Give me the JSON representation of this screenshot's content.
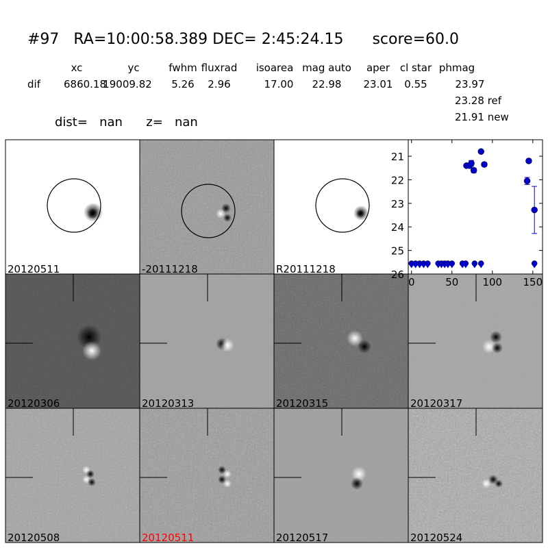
{
  "header": {
    "title": "#97   RA=10:00:58.389 DEC= 2:45:24.15      score=60.0",
    "columns": [
      "xc",
      "yc",
      "fwhm",
      "fluxrad",
      "isoarea",
      "mag auto",
      "aper",
      "cl star",
      "phmag"
    ],
    "row_label": "dif",
    "row_values": [
      "6860.18",
      "19009.82",
      "5.26",
      "2.96",
      "17.00",
      "22.98",
      "23.01",
      "0.55",
      "23.97"
    ],
    "ref": "23.28 ref",
    "new": "21.91 new",
    "dist": "dist=   nan      z=   nan"
  },
  "panels": [
    "20120511",
    "-20111218",
    "R20111218",
    "20120306",
    "20120313",
    "20120315",
    "20120317",
    "20120508",
    "20120511",
    "20120517",
    "20120524"
  ],
  "highlight_panel_color": "#ff0000",
  "chart_data": {
    "type": "scatter",
    "color": "#0000cc",
    "x": [
      68,
      72,
      74,
      77,
      86,
      90,
      143,
      145,
      152
    ],
    "values": [
      21.4,
      21.4,
      21.3,
      21.6,
      20.8,
      21.35,
      22.05,
      21.2,
      23.28
    ],
    "errors": [
      0.05,
      0.05,
      0.12,
      0.1,
      0.05,
      0.08,
      0.15,
      0.08,
      1.0
    ],
    "limit_x": [
      0,
      5,
      10,
      15,
      20,
      33,
      37,
      41,
      45,
      50,
      63,
      67,
      78,
      86,
      152
    ],
    "limit_values": [
      25.55,
      25.55,
      25.55,
      25.55,
      25.55,
      25.55,
      25.55,
      25.55,
      25.55,
      25.55,
      25.55,
      25.55,
      25.55,
      25.55,
      25.55
    ],
    "xlim": [
      -4,
      162
    ],
    "ylim": [
      26,
      20.3
    ],
    "xticks": [
      0,
      50,
      100,
      150
    ],
    "yticks": [
      21,
      22,
      23,
      24,
      25,
      26
    ]
  }
}
